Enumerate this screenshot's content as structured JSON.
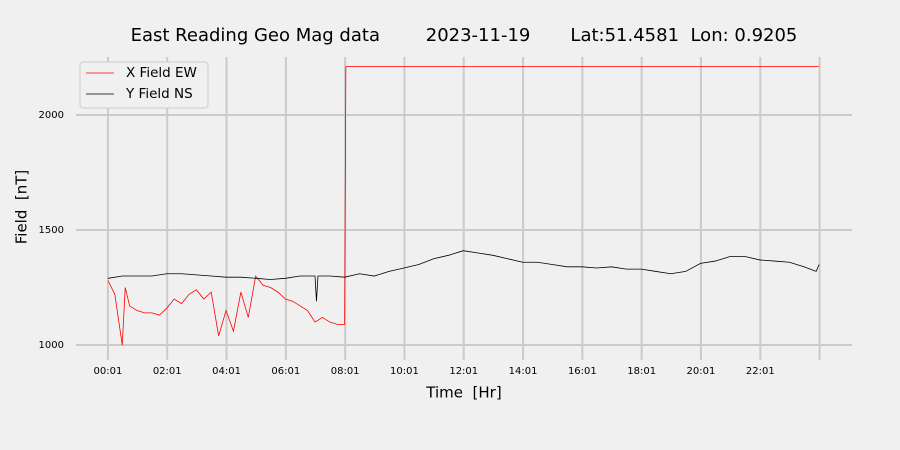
{
  "chart_data": {
    "type": "line",
    "title": "East Reading Geo Mag data        2023-11-19       Lat:51.4581  Lon: 0.9205",
    "x_label": "Time  [Hr]",
    "y_label": "Field  [nT]",
    "xlim": [
      -1.06,
      25.11
    ],
    "ylim": [
      935,
      2252
    ],
    "xticks": [
      {
        "value": 0.0167,
        "label": "00:01"
      },
      {
        "value": 2.0167,
        "label": "02:01"
      },
      {
        "value": 4.0167,
        "label": "04:01"
      },
      {
        "value": 6.0167,
        "label": "06:01"
      },
      {
        "value": 8.0167,
        "label": "08:01"
      },
      {
        "value": 10.0167,
        "label": "10:01"
      },
      {
        "value": 12.0167,
        "label": "12:01"
      },
      {
        "value": 14.0167,
        "label": "14:01"
      },
      {
        "value": 16.0167,
        "label": "16:01"
      },
      {
        "value": 18.0167,
        "label": "18:01"
      },
      {
        "value": 20.0167,
        "label": "20:01"
      },
      {
        "value": 22.0167,
        "label": "22:01"
      },
      {
        "value": 24.0167,
        "label": null
      }
    ],
    "yticks": [
      1000,
      1500,
      2000
    ],
    "grid": true,
    "legend": "upper left",
    "series": [
      {
        "name": "X Field EW",
        "color": "#ff0000",
        "x": [
          0.02,
          0.25,
          0.5,
          0.6,
          0.75,
          1.0,
          1.25,
          1.5,
          1.75,
          2.0,
          2.25,
          2.5,
          2.75,
          3.0,
          3.25,
          3.5,
          3.75,
          4.0,
          4.25,
          4.5,
          4.75,
          5.0,
          5.25,
          5.5,
          5.75,
          6.0,
          6.25,
          6.5,
          6.75,
          7.0,
          7.25,
          7.5,
          7.75,
          8.0,
          8.04,
          24.0
        ],
        "values": [
          1280,
          1220,
          1000,
          1250,
          1170,
          1150,
          1140,
          1140,
          1130,
          1160,
          1200,
          1180,
          1220,
          1240,
          1200,
          1230,
          1040,
          1150,
          1060,
          1230,
          1120,
          1300,
          1260,
          1250,
          1230,
          1200,
          1190,
          1170,
          1150,
          1100,
          1120,
          1100,
          1090,
          1090,
          2210,
          2210
        ]
      },
      {
        "name": "Y Field NS",
        "color": "#000000",
        "x": [
          0.02,
          0.5,
          1.0,
          1.5,
          2.0,
          2.5,
          3.0,
          3.5,
          4.0,
          4.5,
          5.0,
          5.5,
          6.0,
          6.5,
          7.0,
          7.05,
          7.1,
          7.5,
          8.0,
          8.5,
          9.0,
          9.5,
          10.0,
          10.5,
          11.0,
          11.5,
          12.0,
          12.5,
          13.0,
          13.5,
          14.0,
          14.5,
          15.0,
          15.5,
          16.0,
          16.5,
          17.0,
          17.5,
          18.0,
          18.5,
          19.0,
          19.5,
          20.0,
          20.5,
          21.0,
          21.5,
          22.0,
          22.5,
          23.0,
          23.5,
          23.9,
          24.0
        ],
        "values": [
          1290,
          1300,
          1300,
          1300,
          1310,
          1310,
          1305,
          1300,
          1295,
          1295,
          1290,
          1285,
          1290,
          1300,
          1300,
          1190,
          1300,
          1300,
          1295,
          1310,
          1300,
          1320,
          1335,
          1350,
          1375,
          1390,
          1410,
          1400,
          1390,
          1375,
          1360,
          1360,
          1350,
          1340,
          1340,
          1335,
          1340,
          1330,
          1330,
          1320,
          1310,
          1320,
          1355,
          1365,
          1385,
          1385,
          1370,
          1365,
          1360,
          1340,
          1320,
          1350
        ]
      }
    ]
  }
}
